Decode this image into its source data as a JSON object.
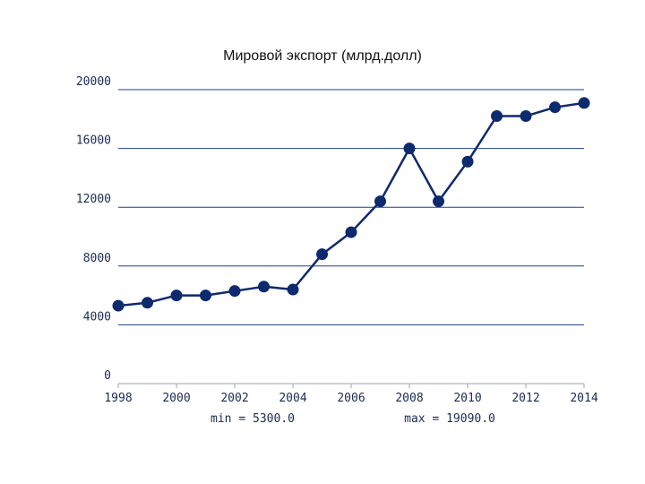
{
  "chart_data": {
    "type": "line",
    "title": "Мировой экспорт (млрд.долл)",
    "x": [
      1998,
      1999,
      2000,
      2001,
      2002,
      2003,
      2004,
      2005,
      2006,
      2007,
      2008,
      2009,
      2010,
      2011,
      2012,
      2013,
      2014
    ],
    "series": [
      {
        "values": [
          5300,
          5500,
          6000,
          6000,
          6300,
          6600,
          6400,
          8800,
          10300,
          12400,
          16000,
          12400,
          15100,
          18200,
          18200,
          18800,
          19090
        ],
        "color": "#0e2a6e"
      }
    ],
    "xlim": [
      1998,
      2014
    ],
    "ylim": [
      0,
      20000
    ],
    "x_ticks": [
      "1998",
      "2000",
      "2002",
      "2004",
      "2006",
      "2008",
      "2010",
      "2012",
      "2014"
    ],
    "y_ticks": [
      "0",
      "4000",
      "8000",
      "12000",
      "16000",
      "20000"
    ],
    "grid": "horizontal",
    "gridline_color": "#1e3f8a",
    "min_label": "min = 5300.0",
    "max_label": "max = 19090.0"
  }
}
